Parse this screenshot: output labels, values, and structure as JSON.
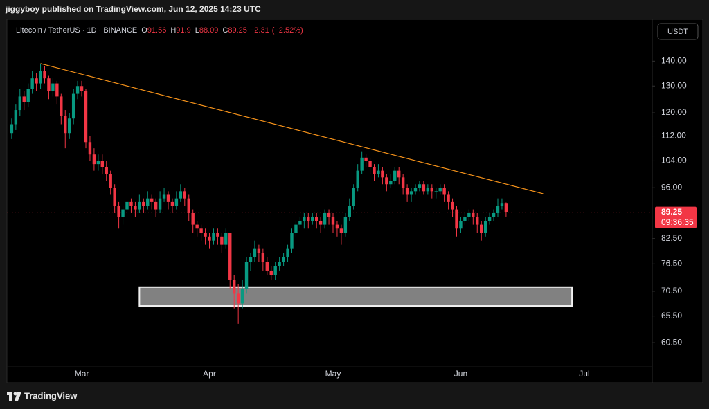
{
  "header": {
    "publisher": "jiggyboy published on TradingView.com, Jun 12, 2025 14:23 UTC",
    "brand": "TradingView"
  },
  "chart_data": {
    "type": "candlestick",
    "title": "Litecoin / TetherUS · 1D · BINANCE",
    "currency": "USDT",
    "legend_labels": {
      "open": "O",
      "high": "H",
      "low": "L",
      "close": "C"
    },
    "change": {
      "value": -2.31,
      "label": "−2.31"
    },
    "change_percent": {
      "value": -2.52,
      "label": "(−2.52%)"
    },
    "countdown": "09:36:35",
    "up_color": "#089981",
    "down_color": "#f23645",
    "log_scale": true,
    "grid": false,
    "categories": [
      null,
      null,
      null,
      null,
      null,
      null,
      null,
      null,
      null,
      null,
      null,
      null,
      null,
      null,
      null,
      null,
      null,
      "Mar",
      null,
      null,
      null,
      null,
      null,
      null,
      null,
      null,
      null,
      null,
      null,
      null,
      null,
      null,
      null,
      null,
      null,
      null,
      null,
      null,
      null,
      null,
      null,
      null,
      null,
      null,
      null,
      null,
      null,
      null,
      "Apr",
      null,
      null,
      null,
      null,
      null,
      null,
      null,
      null,
      null,
      null,
      null,
      null,
      null,
      null,
      null,
      null,
      null,
      null,
      null,
      null,
      null,
      null,
      null,
      null,
      null,
      null,
      null,
      null,
      null,
      "May",
      null,
      null,
      null,
      null,
      null,
      null,
      null,
      null,
      null,
      null,
      null,
      null,
      null,
      null,
      null,
      null,
      null,
      null,
      null,
      null,
      null,
      null,
      null,
      null,
      null,
      null,
      null,
      null,
      null,
      null,
      "Jun",
      null,
      null,
      null,
      null,
      null,
      null,
      null,
      null,
      null,
      null,
      null,
      null,
      null,
      null,
      null,
      null,
      null,
      null,
      null,
      null,
      null,
      null,
      null,
      null,
      null,
      null,
      null,
      null,
      null,
      "Jul"
    ],
    "open": [
      113,
      116,
      121,
      126,
      124,
      129,
      133,
      131,
      136,
      133,
      128,
      131,
      126,
      119,
      113,
      118,
      127,
      130,
      128,
      110,
      106,
      103,
      104,
      102,
      100,
      96,
      91,
      88,
      90,
      92,
      91,
      90,
      92,
      91,
      93,
      92,
      90,
      93,
      94,
      92,
      91,
      93,
      95,
      93,
      89,
      86,
      85,
      84,
      83,
      82,
      84,
      83,
      81,
      84,
      73,
      70,
      68,
      71,
      77,
      78,
      80,
      79,
      77,
      75,
      74,
      76,
      77,
      78,
      80,
      84,
      86,
      87,
      88,
      87,
      88,
      87,
      86,
      89,
      88,
      86,
      85,
      84,
      88,
      91,
      96,
      101,
      105,
      104,
      102,
      100,
      101,
      99,
      97,
      98,
      101,
      99,
      96,
      94,
      95,
      96,
      97,
      95,
      96,
      95,
      95,
      96,
      94,
      92,
      90,
      85,
      87,
      88,
      89,
      88,
      86,
      84,
      87,
      88,
      89,
      91,
      91.56,
      null,
      null,
      null,
      null,
      null,
      null,
      null,
      null,
      null,
      null,
      null,
      null,
      null,
      null,
      null,
      null,
      null,
      null,
      null
    ],
    "high": [
      118,
      123,
      129,
      128,
      131,
      136,
      135,
      139,
      138,
      134,
      133,
      132,
      127,
      121,
      120,
      129,
      132,
      132,
      129,
      112,
      108,
      106,
      106,
      104,
      101,
      97,
      92,
      91,
      94,
      93,
      92,
      94,
      93,
      95,
      94,
      93,
      95,
      96,
      95,
      93,
      95,
      97,
      96,
      94,
      90,
      87,
      86,
      85,
      84,
      85,
      85,
      84,
      85,
      84,
      74,
      72,
      73,
      78,
      79,
      82,
      81,
      80,
      78,
      76,
      77,
      78,
      79,
      81,
      85,
      87,
      88,
      89,
      89,
      89,
      89,
      88,
      90,
      90,
      89,
      87,
      86,
      89,
      93,
      97,
      103,
      107,
      106,
      105,
      103,
      103,
      102,
      100,
      100,
      102,
      102,
      100,
      97,
      96,
      97,
      98,
      98,
      97,
      97,
      96,
      97,
      97,
      95,
      93,
      91,
      88,
      89,
      90,
      90,
      89,
      87,
      88,
      89,
      90,
      93,
      93,
      91.9,
      null,
      null,
      null,
      null,
      null,
      null,
      null,
      null,
      null,
      null,
      null,
      null,
      null,
      null,
      null,
      null,
      null,
      null,
      null
    ],
    "low": [
      111,
      114,
      119,
      121,
      122,
      127,
      128,
      129,
      131,
      125,
      126,
      123,
      116,
      108,
      111,
      116,
      125,
      126,
      108,
      104,
      101,
      101,
      100,
      98,
      94,
      89,
      85,
      86,
      89,
      89,
      88,
      89,
      89,
      90,
      90,
      88,
      89,
      92,
      90,
      89,
      90,
      92,
      91,
      87,
      84,
      83,
      82,
      81,
      80,
      81,
      81,
      79,
      80,
      71,
      67,
      64,
      67,
      70,
      75,
      77,
      77,
      75,
      74,
      73,
      73,
      75,
      76,
      77,
      79,
      83,
      85,
      85,
      85,
      86,
      85,
      84,
      85,
      86,
      84,
      83,
      81,
      83,
      87,
      90,
      95,
      100,
      102,
      100,
      98,
      99,
      97,
      95,
      96,
      97,
      97,
      94,
      92,
      92,
      94,
      95,
      94,
      94,
      93,
      93,
      94,
      92,
      90,
      88,
      83,
      84,
      86,
      87,
      86,
      84,
      82,
      83,
      86,
      87,
      88,
      90,
      88.09,
      null,
      null,
      null,
      null,
      null,
      null,
      null,
      null,
      null,
      null,
      null,
      null,
      null,
      null,
      null,
      null,
      null,
      null,
      null
    ],
    "close": [
      116,
      121,
      126,
      124,
      129,
      133,
      131,
      136,
      133,
      128,
      131,
      126,
      119,
      113,
      118,
      127,
      130,
      128,
      110,
      106,
      103,
      104,
      102,
      100,
      96,
      91,
      88,
      90,
      92,
      91,
      90,
      92,
      91,
      93,
      92,
      90,
      93,
      94,
      92,
      91,
      93,
      95,
      93,
      89,
      86,
      85,
      84,
      83,
      82,
      84,
      83,
      81,
      84,
      73,
      70,
      68,
      71,
      77,
      78,
      80,
      79,
      77,
      75,
      74,
      76,
      77,
      78,
      80,
      84,
      86,
      87,
      88,
      87,
      88,
      87,
      86,
      89,
      88,
      86,
      85,
      84,
      88,
      91,
      96,
      101,
      105,
      104,
      102,
      100,
      101,
      99,
      97,
      98,
      101,
      99,
      96,
      94,
      95,
      96,
      97,
      95,
      96,
      95,
      95,
      96,
      94,
      92,
      90,
      85,
      87,
      88,
      89,
      88,
      86,
      84,
      87,
      88,
      89,
      91,
      91.56,
      89.25,
      null,
      null,
      null,
      null,
      null,
      null,
      null,
      null,
      null,
      null,
      null,
      null,
      null,
      null,
      null,
      null,
      null,
      null,
      null
    ],
    "ylim": [
      56.3,
      157.9
    ],
    "yticks": [
      {
        "value": 140,
        "label": "140.00"
      },
      {
        "value": 130,
        "label": "130.00"
      },
      {
        "value": 120,
        "label": "120.00"
      },
      {
        "value": 112,
        "label": "112.00"
      },
      {
        "value": 104,
        "label": "104.00"
      },
      {
        "value": 96,
        "label": "96.00"
      },
      {
        "value": 82.5,
        "label": "82.50"
      },
      {
        "value": 76.5,
        "label": "76.50"
      },
      {
        "value": 70.5,
        "label": "70.50"
      },
      {
        "value": 65.5,
        "label": "65.50"
      },
      {
        "value": 60.5,
        "label": "60.50"
      }
    ],
    "trendline": {
      "x": [
        7,
        129
      ],
      "y": [
        139,
        94.3
      ],
      "color": "#f7931a"
    },
    "zone": {
      "x": [
        31,
        136
      ],
      "y": [
        71.4,
        67.5
      ],
      "color": "#888888"
    }
  }
}
